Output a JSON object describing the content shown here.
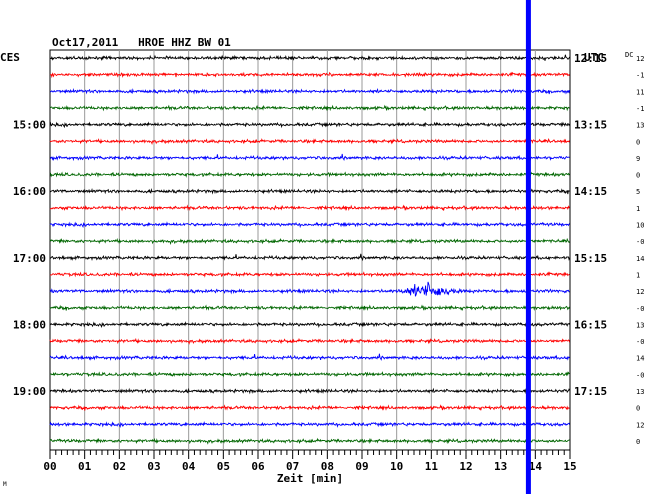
{
  "header": {
    "title": "Oct17,2011   HROE HHZ BW 01",
    "left_timezone": "CES",
    "right_timezone": "UTC",
    "dc_label": "DC"
  },
  "chart_data": {
    "type": "line",
    "title": "Oct17,2011   HROE HHZ BW 01",
    "xlabel": "Zeit [min]",
    "x_ticks": [
      "00",
      "01",
      "02",
      "03",
      "04",
      "05",
      "06",
      "07",
      "08",
      "09",
      "10",
      "11",
      "12",
      "13",
      "14",
      "15"
    ],
    "xlim": [
      0,
      15
    ],
    "grid": true,
    "trace_count": 24,
    "trace_colors": [
      "#000000",
      "#ff0000",
      "#0000ff",
      "#006600"
    ],
    "left_hour_labels": [
      {
        "trace": 4,
        "text": "15:00"
      },
      {
        "trace": 8,
        "text": "16:00"
      },
      {
        "trace": 12,
        "text": "17:00"
      },
      {
        "trace": 16,
        "text": "18:00"
      },
      {
        "trace": 20,
        "text": "19:00"
      }
    ],
    "right_hour_labels": [
      {
        "trace": 0,
        "text": "12:15"
      },
      {
        "trace": 4,
        "text": "13:15"
      },
      {
        "trace": 8,
        "text": "14:15"
      },
      {
        "trace": 12,
        "text": "15:15"
      },
      {
        "trace": 16,
        "text": "16:15"
      },
      {
        "trace": 20,
        "text": "17:15"
      }
    ],
    "dc_offsets": [
      "12",
      "-1",
      "11",
      "-1",
      "13",
      "0",
      "9",
      "0",
      "5",
      "1",
      "10",
      "-0",
      "14",
      "1",
      "12",
      "-0",
      "13",
      "-0",
      "14",
      "-0",
      "13",
      "0",
      "12",
      "0"
    ],
    "event": {
      "trace": 14,
      "x_start": 9.5,
      "x_end": 12.0,
      "peak_x": 10.9
    },
    "marker": {
      "x": 13.8,
      "color": "#0000ff"
    }
  },
  "footer": {
    "small_mark": "M"
  }
}
